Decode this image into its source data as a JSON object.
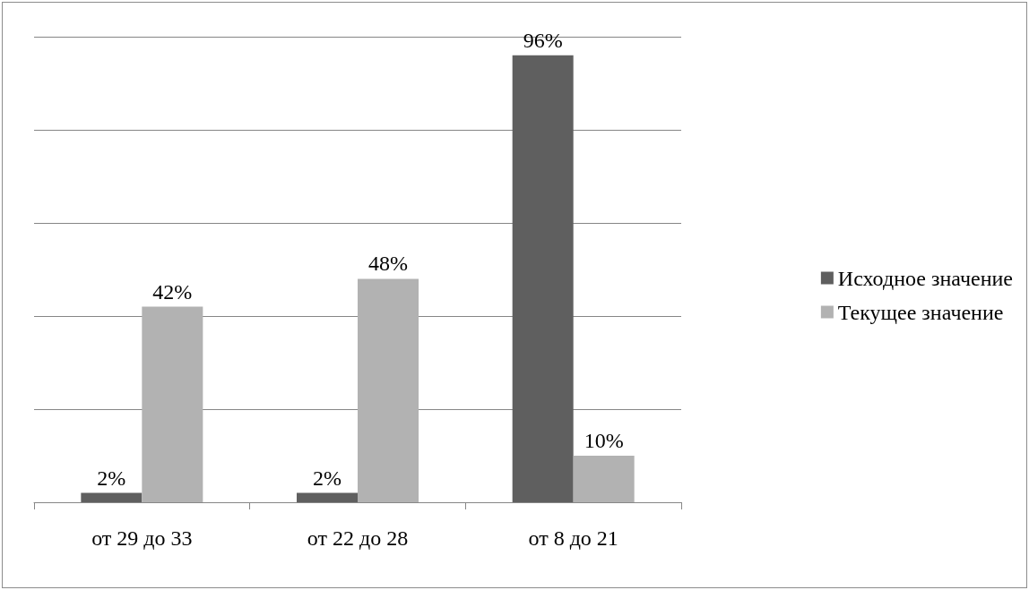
{
  "chart_data": {
    "type": "bar",
    "categories": [
      "от 29 до 33",
      "от 22 до 28",
      "от 8 до 21"
    ],
    "series": [
      {
        "name": "Исходное значение",
        "color": "#5f5f5f",
        "values": [
          2,
          2,
          96
        ],
        "value_labels": [
          "2%",
          "2%",
          "96%"
        ]
      },
      {
        "name": "Текущее значение",
        "color": "#b2b2b2",
        "values": [
          42,
          48,
          10
        ],
        "value_labels": [
          "42%",
          "48%",
          "10%"
        ]
      }
    ],
    "tick_labels": "x",
    "grid": "y",
    "legend": "right"
  }
}
